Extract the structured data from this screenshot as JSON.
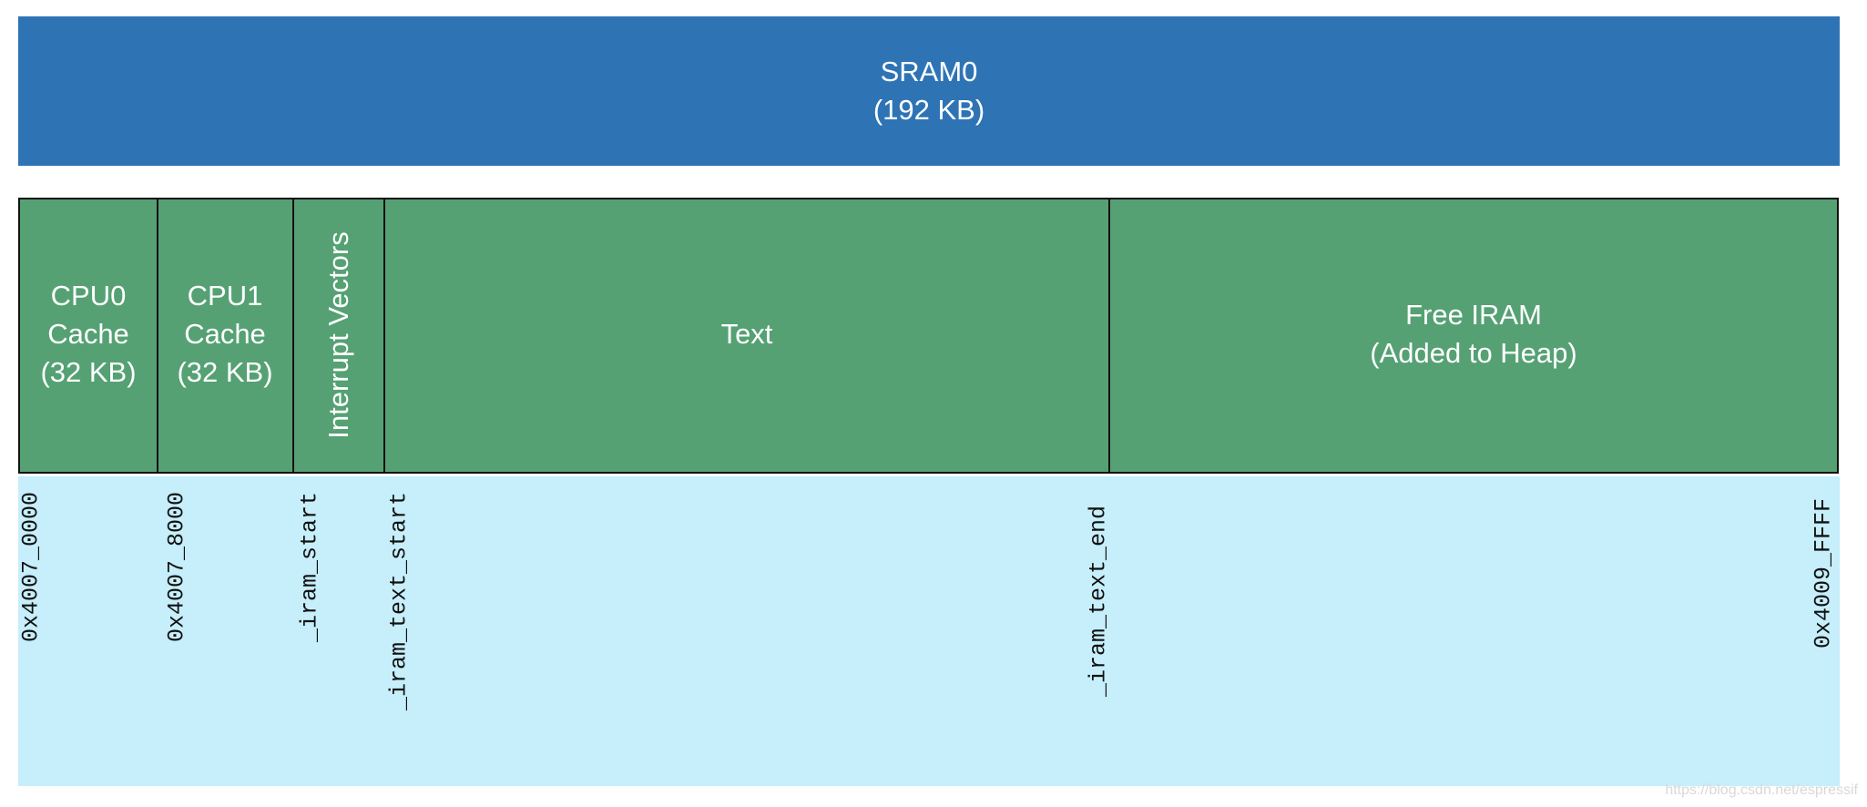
{
  "header": {
    "title": "SRAM0",
    "subtitle": "(192 KB)"
  },
  "regions": [
    {
      "lines": [
        "CPU0",
        "Cache",
        "(32 KB)"
      ]
    },
    {
      "lines": [
        "CPU1",
        "Cache",
        "(32 KB)"
      ]
    },
    {
      "lines": [
        "Interrupt Vectors"
      ]
    },
    {
      "lines": [
        "Text"
      ]
    },
    {
      "lines": [
        "Free IRAM",
        "(Added to Heap)"
      ]
    }
  ],
  "addresses": [
    "0x4007_0000",
    "0x4007_8000",
    "_iram_start",
    "_iram_text_start",
    "_iram_text_end",
    "0x4009_FFFF"
  ],
  "watermark": "https://blog.csdn.net/espressif"
}
